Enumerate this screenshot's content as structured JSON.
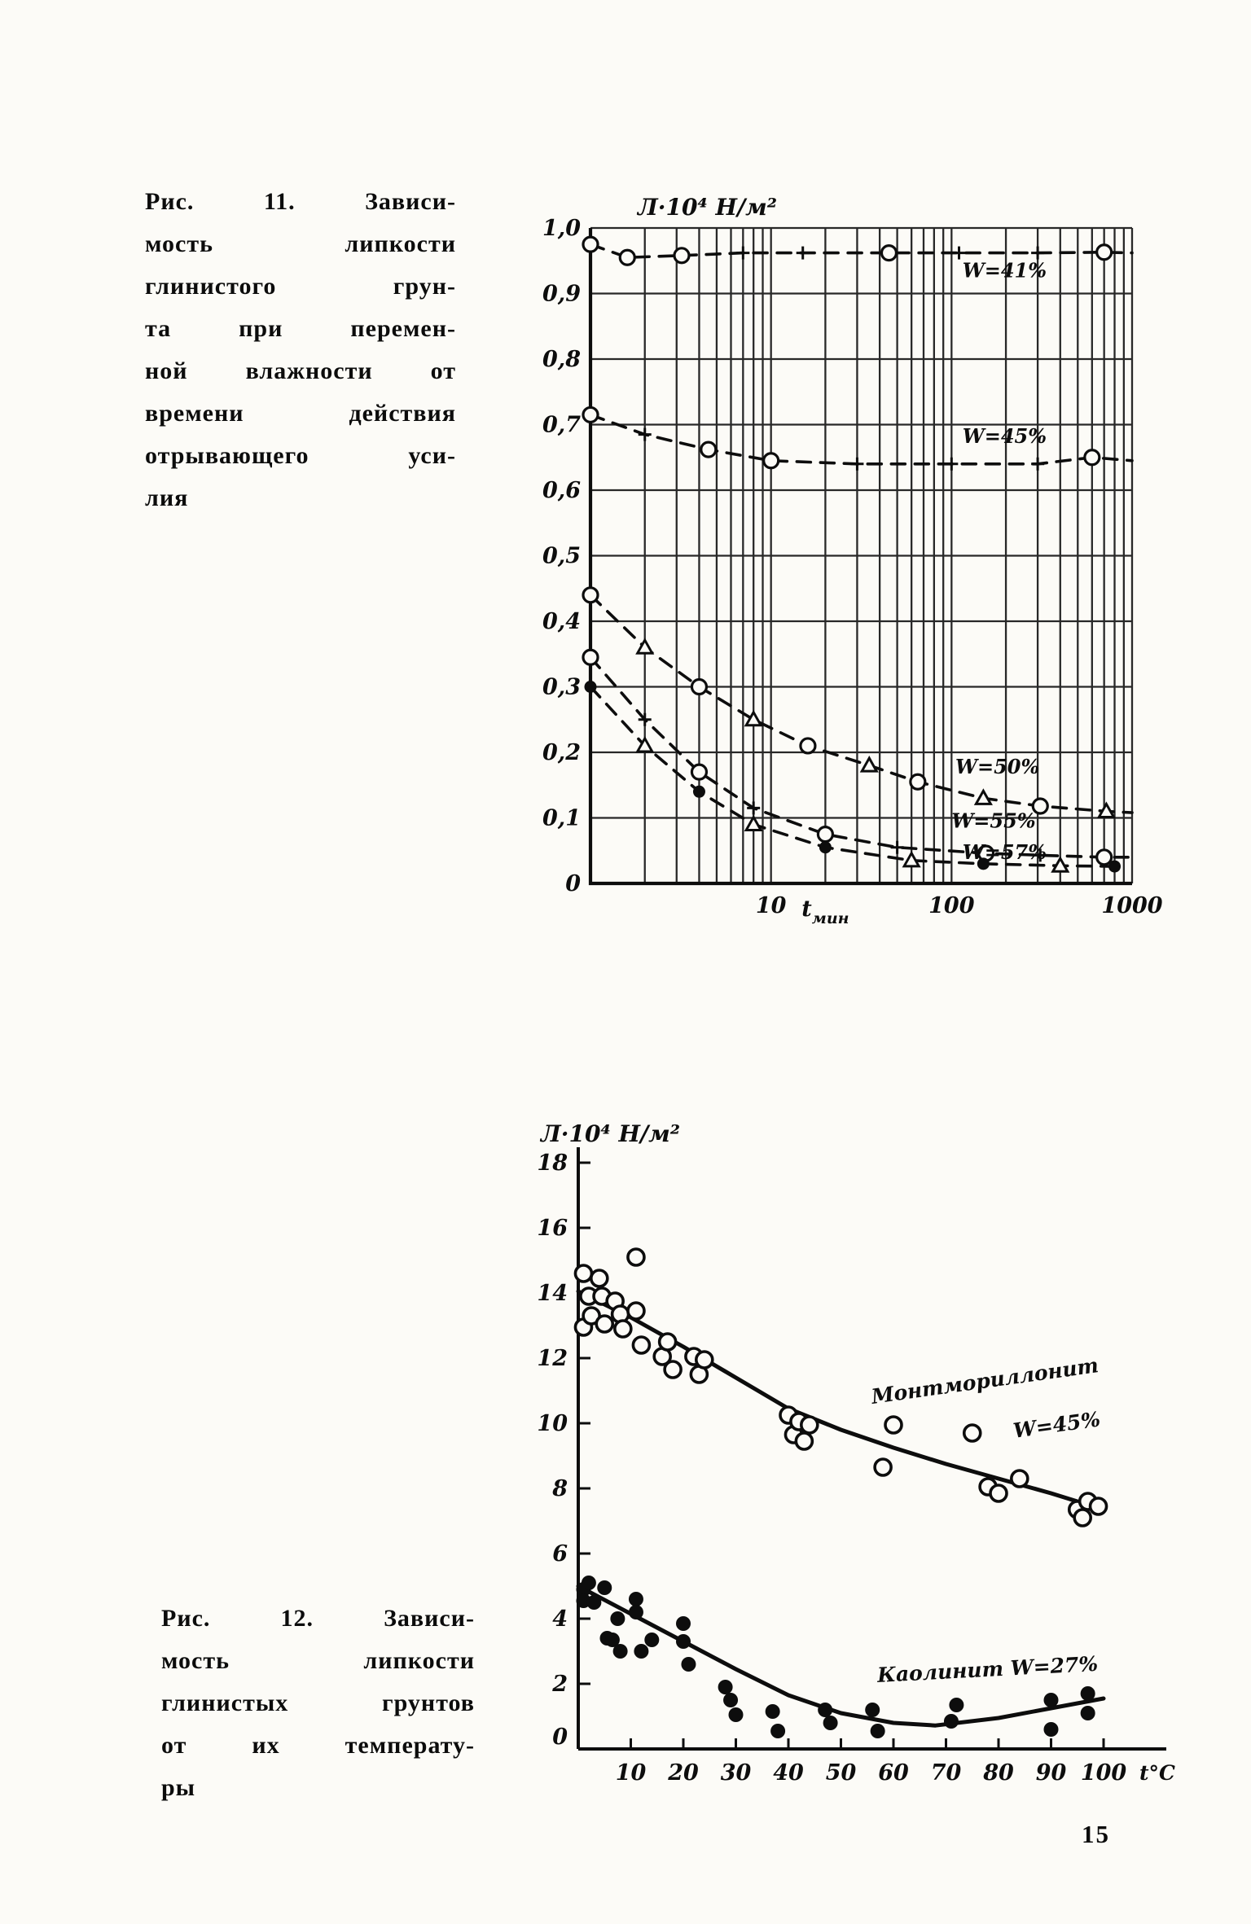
{
  "page": {
    "number": "15",
    "ink": "#0d0d0d",
    "paper": "#fcfbf7"
  },
  "fig11": {
    "caption": "Рис. 11. Зависимость липкости глинистого грунта при переменной влажности от времени действия отрывающего усилия",
    "caption_lines": [
      "Рис. 11. Зависи-",
      "мость липкости",
      "глинистого грун-",
      "та при перемен-",
      "ной влажности от",
      "времени действия",
      "отрывающего уси-",
      "лия"
    ]
  },
  "fig12": {
    "caption": "Рис. 12. Зависимость липкости глинистых грунтов от их температуры",
    "caption_lines": [
      "Рис. 12. Зависи-",
      "мость липкости",
      "глинистых грунтов",
      "от их температу-",
      "ры"
    ]
  },
  "chart_data": [
    {
      "id": "fig11",
      "type": "line",
      "x_scale": "log",
      "axis_title": "Л·10⁴ Н/м²",
      "xlabel_main": "t",
      "xlabel_sub": "мин",
      "xlim": [
        1,
        1000
      ],
      "ylim": [
        0,
        1.0
      ],
      "grid": true,
      "x_tick_labels": [
        {
          "v": 10,
          "t": "10"
        },
        {
          "v": 100,
          "t": "100"
        },
        {
          "v": 1000,
          "t": "1000"
        }
      ],
      "y_tick_labels": [
        {
          "v": 1.0,
          "t": "1,0"
        },
        {
          "v": 0.9,
          "t": "0,9"
        },
        {
          "v": 0.8,
          "t": "0,8"
        },
        {
          "v": 0.7,
          "t": "0,7"
        },
        {
          "v": 0.6,
          "t": "0,6"
        },
        {
          "v": 0.5,
          "t": "0,5"
        },
        {
          "v": 0.4,
          "t": "0,4"
        },
        {
          "v": 0.3,
          "t": "0,3"
        },
        {
          "v": 0.2,
          "t": "0,2"
        },
        {
          "v": 0.1,
          "t": "0,1"
        },
        {
          "v": 0,
          "t": "0"
        }
      ],
      "series": [
        {
          "name": "W=41%",
          "label": {
            "text": "W=41%",
            "x": 115,
            "y": 0.925
          },
          "line": [
            [
              1,
              0.975
            ],
            [
              1.6,
              0.955
            ],
            [
              3.2,
              0.958
            ],
            [
              7,
              0.962
            ],
            [
              15,
              0.962
            ],
            [
              45,
              0.962
            ],
            [
              110,
              0.962
            ],
            [
              300,
              0.962
            ],
            [
              700,
              0.963
            ],
            [
              1000,
              0.962
            ]
          ],
          "markers": [
            [
              "o",
              1,
              0.975
            ],
            [
              "o",
              1.6,
              0.955
            ],
            [
              "o",
              3.2,
              0.958
            ],
            [
              "+",
              7,
              0.962
            ],
            [
              "+",
              15,
              0.962
            ],
            [
              "o",
              45,
              0.962
            ],
            [
              "+",
              110,
              0.962
            ],
            [
              "+",
              300,
              0.962
            ],
            [
              "o",
              700,
              0.963
            ]
          ]
        },
        {
          "name": "W=45%",
          "label": {
            "text": "W=45%",
            "x": 115,
            "y": 0.672
          },
          "line": [
            [
              1,
              0.715
            ],
            [
              2,
              0.685
            ],
            [
              4.5,
              0.662
            ],
            [
              10,
              0.645
            ],
            [
              30,
              0.64
            ],
            [
              100,
              0.64
            ],
            [
              300,
              0.64
            ],
            [
              600,
              0.65
            ],
            [
              1000,
              0.645
            ]
          ],
          "markers": [
            [
              "o",
              1,
              0.715
            ],
            [
              "+",
              2,
              0.685
            ],
            [
              "o",
              4.5,
              0.662
            ],
            [
              "o",
              10,
              0.645
            ],
            [
              "+",
              30,
              0.64
            ],
            [
              "+",
              100,
              0.64
            ],
            [
              "+",
              300,
              0.64
            ],
            [
              "o",
              600,
              0.65
            ]
          ]
        },
        {
          "name": "W=50%",
          "label": {
            "text": "W=50%",
            "x": 105,
            "y": 0.168
          },
          "line": [
            [
              1,
              0.44
            ],
            [
              2,
              0.36
            ],
            [
              4,
              0.3
            ],
            [
              8,
              0.25
            ],
            [
              16,
              0.21
            ],
            [
              35,
              0.18
            ],
            [
              65,
              0.155
            ],
            [
              150,
              0.13
            ],
            [
              310,
              0.118
            ],
            [
              720,
              0.11
            ],
            [
              1000,
              0.108
            ]
          ],
          "markers": [
            [
              "o",
              1,
              0.44
            ],
            [
              "t",
              2,
              0.36
            ],
            [
              "o",
              4,
              0.3
            ],
            [
              "t",
              8,
              0.25
            ],
            [
              "o",
              16,
              0.21
            ],
            [
              "t",
              35,
              0.18
            ],
            [
              "o",
              65,
              0.155
            ],
            [
              "t",
              150,
              0.13
            ],
            [
              "o",
              310,
              0.118
            ],
            [
              "t",
              720,
              0.11
            ]
          ]
        },
        {
          "name": "W=55%",
          "label": {
            "text": "W=55%",
            "x": 100,
            "y": 0.085
          },
          "line": [
            [
              1,
              0.345
            ],
            [
              2,
              0.25
            ],
            [
              4,
              0.17
            ],
            [
              8,
              0.115
            ],
            [
              20,
              0.075
            ],
            [
              50,
              0.055
            ],
            [
              155,
              0.046
            ],
            [
              310,
              0.043
            ],
            [
              700,
              0.04
            ],
            [
              950,
              0.04
            ]
          ],
          "markers": [
            [
              "o",
              1,
              0.345
            ],
            [
              "+",
              2,
              0.25
            ],
            [
              "o",
              4,
              0.17
            ],
            [
              "+",
              8,
              0.115
            ],
            [
              "o",
              20,
              0.075
            ],
            [
              "+",
              50,
              0.055
            ],
            [
              "o",
              155,
              0.046
            ],
            [
              "+",
              310,
              0.043
            ],
            [
              "o",
              700,
              0.04
            ]
          ]
        },
        {
          "name": "W=57%",
          "label": {
            "text": "W=57%",
            "x": 115,
            "y": 0.037
          },
          "line": [
            [
              1,
              0.3
            ],
            [
              2,
              0.21
            ],
            [
              4,
              0.14
            ],
            [
              8,
              0.09
            ],
            [
              20,
              0.055
            ],
            [
              60,
              0.035
            ],
            [
              150,
              0.03
            ],
            [
              400,
              0.027
            ],
            [
              800,
              0.026
            ]
          ],
          "markers": [
            [
              "d",
              1,
              0.3
            ],
            [
              "t",
              2,
              0.21
            ],
            [
              "d",
              4,
              0.14
            ],
            [
              "t",
              8,
              0.09
            ],
            [
              "d",
              20,
              0.055
            ],
            [
              "t",
              60,
              0.035
            ],
            [
              "d",
              150,
              0.03
            ],
            [
              "t",
              400,
              0.027
            ],
            [
              "d",
              800,
              0.026
            ]
          ]
        }
      ]
    },
    {
      "id": "fig12",
      "type": "scatter",
      "axis_title": "Л·10⁴ Н/м²",
      "xlabel": "t°C",
      "xlim": [
        0,
        100
      ],
      "ylim": [
        0,
        18
      ],
      "grid": false,
      "x_tick_labels": [
        {
          "v": 10,
          "t": "10"
        },
        {
          "v": 20,
          "t": "20"
        },
        {
          "v": 30,
          "t": "30"
        },
        {
          "v": 40,
          "t": "40"
        },
        {
          "v": 50,
          "t": "50"
        },
        {
          "v": 60,
          "t": "60"
        },
        {
          "v": 70,
          "t": "70"
        },
        {
          "v": 80,
          "t": "80"
        },
        {
          "v": 90,
          "t": "90"
        },
        {
          "v": 100,
          "t": "100"
        }
      ],
      "y_tick_labels": [
        {
          "v": 18,
          "t": "18"
        },
        {
          "v": 16,
          "t": "16"
        },
        {
          "v": 14,
          "t": "14"
        },
        {
          "v": 12,
          "t": "12"
        },
        {
          "v": 10,
          "t": "10"
        },
        {
          "v": 8,
          "t": "8"
        },
        {
          "v": 6,
          "t": "6"
        },
        {
          "v": 4,
          "t": "4"
        },
        {
          "v": 2,
          "t": "2"
        },
        {
          "v": 0,
          "t": "0"
        }
      ],
      "series": [
        {
          "name": "Монтмориллонит W=45%",
          "marker": "open",
          "labels": [
            {
              "text": "Монтмориллонит",
              "x": 56,
              "y": 10.6,
              "rot": -8
            },
            {
              "text": "W=45%",
              "x": 83,
              "y": 9.55,
              "rot": -8
            }
          ],
          "line": [
            [
              0,
              14.05
            ],
            [
              10,
              13.25
            ],
            [
              20,
              12.35
            ],
            [
              30,
              11.4
            ],
            [
              40,
              10.45
            ],
            [
              50,
              9.8
            ],
            [
              60,
              9.25
            ],
            [
              70,
              8.75
            ],
            [
              80,
              8.3
            ],
            [
              90,
              7.85
            ],
            [
              100,
              7.35
            ]
          ],
          "points": [
            [
              1,
              14.6
            ],
            [
              1,
              12.95
            ],
            [
              2,
              13.9
            ],
            [
              2.5,
              13.3
            ],
            [
              4,
              14.45
            ],
            [
              4.5,
              13.9
            ],
            [
              5,
              13.05
            ],
            [
              7,
              13.75
            ],
            [
              8,
              13.35
            ],
            [
              8.5,
              12.9
            ],
            [
              11,
              15.1
            ],
            [
              11,
              13.45
            ],
            [
              12,
              12.4
            ],
            [
              16,
              12.05
            ],
            [
              17,
              12.5
            ],
            [
              18,
              11.65
            ],
            [
              22,
              12.05
            ],
            [
              23,
              11.5
            ],
            [
              24,
              11.95
            ],
            [
              40,
              10.25
            ],
            [
              41,
              9.65
            ],
            [
              42,
              10.05
            ],
            [
              43,
              9.45
            ],
            [
              44,
              9.95
            ],
            [
              58,
              8.65
            ],
            [
              60,
              9.95
            ],
            [
              75,
              9.7
            ],
            [
              78,
              8.05
            ],
            [
              80,
              7.85
            ],
            [
              84,
              8.3
            ],
            [
              95,
              7.35
            ],
            [
              96,
              7.1
            ],
            [
              97,
              7.6
            ],
            [
              99,
              7.45
            ]
          ]
        },
        {
          "name": "Каолинит W=27%",
          "marker": "filled",
          "labels": [
            {
              "text": "Каолинит W=27%",
              "x": 57,
              "y": 2.05,
              "rot": -3
            }
          ],
          "line": [
            [
              0,
              5.0
            ],
            [
              10,
              4.15
            ],
            [
              20,
              3.3
            ],
            [
              30,
              2.45
            ],
            [
              40,
              1.65
            ],
            [
              50,
              1.1
            ],
            [
              60,
              0.8
            ],
            [
              68,
              0.72
            ],
            [
              80,
              0.95
            ],
            [
              90,
              1.25
            ],
            [
              100,
              1.55
            ]
          ],
          "points": [
            [
              1,
              4.9
            ],
            [
              1,
              4.55
            ],
            [
              2,
              5.1
            ],
            [
              3,
              4.5
            ],
            [
              5,
              4.95
            ],
            [
              5.5,
              3.4
            ],
            [
              6.5,
              3.35
            ],
            [
              7.5,
              4.0
            ],
            [
              8,
              3.0
            ],
            [
              11,
              4.6
            ],
            [
              11,
              4.2
            ],
            [
              12,
              3.0
            ],
            [
              14,
              3.35
            ],
            [
              20,
              3.85
            ],
            [
              20,
              3.3
            ],
            [
              21,
              2.6
            ],
            [
              28,
              1.9
            ],
            [
              29,
              1.5
            ],
            [
              30,
              1.05
            ],
            [
              37,
              1.15
            ],
            [
              38,
              0.55
            ],
            [
              47,
              1.2
            ],
            [
              48,
              0.8
            ],
            [
              56,
              1.2
            ],
            [
              57,
              0.55
            ],
            [
              71,
              0.85
            ],
            [
              72,
              1.35
            ],
            [
              90,
              1.5
            ],
            [
              90,
              0.6
            ],
            [
              97,
              1.7
            ],
            [
              97,
              1.1
            ]
          ]
        }
      ]
    }
  ]
}
